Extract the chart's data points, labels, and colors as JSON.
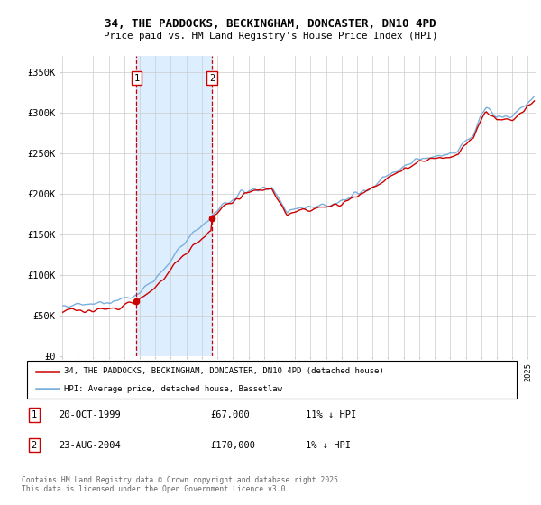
{
  "title": "34, THE PADDOCKS, BECKINGHAM, DONCASTER, DN10 4PD",
  "subtitle": "Price paid vs. HM Land Registry's House Price Index (HPI)",
  "legend_line1": "34, THE PADDOCKS, BECKINGHAM, DONCASTER, DN10 4PD (detached house)",
  "legend_line2": "HPI: Average price, detached house, Bassetlaw",
  "sale1_info": "20-OCT-1999",
  "sale1_price": 67000,
  "sale1_pct": "11% ↓ HPI",
  "sale2_info": "23-AUG-2004",
  "sale2_price": 170000,
  "sale2_pct": "1% ↓ HPI",
  "ytick_labels": [
    "£0",
    "£50K",
    "£100K",
    "£150K",
    "£200K",
    "£250K",
    "£300K",
    "£350K"
  ],
  "yticks": [
    0,
    50000,
    100000,
    150000,
    200000,
    250000,
    300000,
    350000
  ],
  "ylim": [
    0,
    370000
  ],
  "red_color": "#cc0000",
  "blue_color": "#7aafdc",
  "shade_color": "#ddeeff",
  "vline_color": "#cc0000",
  "grid_color": "#cccccc",
  "footer": "Contains HM Land Registry data © Crown copyright and database right 2025.\nThis data is licensed under the Open Government Licence v3.0.",
  "sale1_year": 1999.792,
  "sale2_year": 2004.646
}
